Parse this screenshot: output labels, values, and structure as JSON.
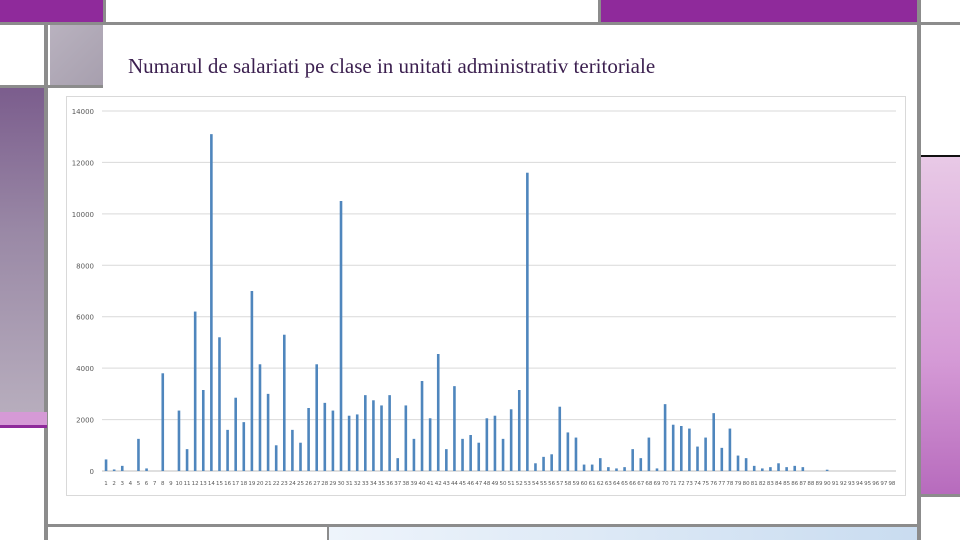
{
  "slide": {
    "title": "Numarul de  salariati pe clase in  unitati administrativ teritoriale"
  },
  "colors": {
    "bar": "#4f86bd",
    "accent_purple": "#8f2a9b",
    "accent_pink": "#d59ad6",
    "accent_light_pink": "#e8c9e6",
    "frame_gray": "#8c8c8c",
    "gradient_gray": "#b3aab9",
    "gradient_purple": "#7b5d8d",
    "bottom_blue": "#d8e6f4",
    "gridline": "#d9d9d9"
  },
  "chart_data": {
    "type": "bar",
    "title": "",
    "xlabel": "",
    "ylabel": "",
    "ylim": [
      0,
      14000
    ],
    "yticks": [
      0,
      2000,
      4000,
      6000,
      8000,
      10000,
      12000,
      14000
    ],
    "ytick_labels": [
      "0",
      "2000",
      "4000",
      "6000",
      "8000",
      "10000",
      "12000",
      "14000"
    ],
    "categories": [
      "1",
      "2",
      "3",
      "4",
      "5",
      "6",
      "7",
      "8",
      "9",
      "10",
      "11",
      "12",
      "13",
      "14",
      "15",
      "16",
      "17",
      "18",
      "19",
      "20",
      "21",
      "22",
      "23",
      "24",
      "25",
      "26",
      "27",
      "28",
      "29",
      "30",
      "31",
      "32",
      "33",
      "34",
      "35",
      "36",
      "37",
      "38",
      "39",
      "40",
      "41",
      "42",
      "43",
      "44",
      "45",
      "46",
      "47",
      "48",
      "49",
      "50",
      "51",
      "52",
      "53",
      "54",
      "55",
      "56",
      "57",
      "58",
      "59",
      "60",
      "61",
      "62",
      "63",
      "64",
      "65",
      "66",
      "67",
      "68",
      "69",
      "70",
      "71",
      "72",
      "73",
      "74",
      "75",
      "76",
      "77",
      "78",
      "79",
      "80",
      "81",
      "82",
      "83",
      "84",
      "85",
      "86",
      "87",
      "88",
      "89",
      "90",
      "91",
      "92",
      "93",
      "94",
      "95",
      "96",
      "97",
      "98"
    ],
    "values": [
      450,
      60,
      200,
      0,
      1250,
      100,
      0,
      3800,
      0,
      2350,
      850,
      6200,
      3150,
      13100,
      5200,
      1600,
      2850,
      1900,
      7000,
      4150,
      3000,
      1000,
      5300,
      1600,
      1100,
      2450,
      4150,
      2650,
      2350,
      10500,
      2150,
      2200,
      2950,
      2750,
      2550,
      2950,
      500,
      2550,
      1250,
      3500,
      2050,
      4550,
      850,
      3300,
      1250,
      1400,
      1100,
      2050,
      2150,
      1250,
      2400,
      3150,
      11600,
      300,
      550,
      650,
      2500,
      1500,
      1300,
      250,
      250,
      500,
      150,
      100,
      150,
      850,
      500,
      1300,
      100,
      2600,
      1800,
      1750,
      1650,
      950,
      1300,
      2250,
      900,
      1650,
      600,
      500,
      200,
      100,
      150,
      300,
      150,
      200,
      150,
      0,
      0,
      50,
      0,
      0,
      0,
      0,
      0,
      0,
      0,
      0
    ]
  }
}
